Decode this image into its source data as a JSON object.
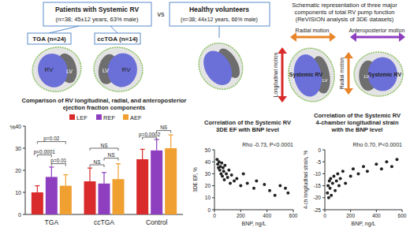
{
  "chart_data": [
    {
      "type": "bar",
      "title": [
        "Comparison of RV longitudinal, radial, and anteroposterior",
        "ejection fraction components"
      ],
      "categories": [
        "TGA",
        "ccTGA",
        "Control"
      ],
      "y_label": "%",
      "ylim": [
        0,
        40
      ],
      "yticks": [
        0,
        10,
        20,
        30,
        40
      ],
      "legend": "top",
      "series": [
        {
          "name": "LEF",
          "color": "#d92b2b",
          "values": [
            10,
            15,
            25
          ],
          "errors": [
            3,
            6,
            4.5
          ]
        },
        {
          "name": "REF",
          "color": "#8e3fbf",
          "values": [
            17,
            14,
            29
          ],
          "errors": [
            4.5,
            5,
            5
          ]
        },
        {
          "name": "AEF",
          "color": "#f0a030",
          "values": [
            13,
            16,
            30
          ],
          "errors": [
            5,
            7,
            6
          ]
        }
      ],
      "annotations": [
        {
          "label": "p=0.02",
          "category": 0,
          "between": [
            0,
            2
          ],
          "y": 33
        },
        {
          "label": "p<0.0001",
          "category": 0,
          "between": [
            0,
            1
          ],
          "y": 27
        },
        {
          "label": "p=0.01",
          "category": 0,
          "between": [
            1,
            2
          ],
          "y": 23
        },
        {
          "label": "NS",
          "category": 1,
          "between": [
            0,
            2
          ],
          "y": 30
        },
        {
          "label": "NS",
          "category": 1,
          "between": [
            0,
            1
          ],
          "y": 22.5
        },
        {
          "label": "NS",
          "category": 1,
          "between": [
            1,
            2
          ],
          "y": 25.5
        },
        {
          "label": "p=0.0002",
          "category": 2,
          "between": [
            0,
            1
          ],
          "y": 35
        },
        {
          "label": "NS",
          "category": 2,
          "between": [
            1,
            2
          ],
          "y": 38
        }
      ]
    },
    {
      "type": "scatter",
      "title": [
        "Correlation of the Systemic RV",
        "3DE EF with BNP level"
      ],
      "annotation": "Rho -0.73, P<0.0001",
      "x_label": "BNP, ng/L",
      "y_label": "3DE EF, %",
      "color": "#222222",
      "marker": "circle",
      "xlim": [
        0,
        600
      ],
      "xticks": [
        0,
        200,
        400,
        600
      ],
      "ylim": [
        0,
        50
      ],
      "yticks": [
        0,
        10,
        20,
        30,
        40,
        50
      ],
      "x": [
        20,
        25,
        30,
        35,
        40,
        45,
        50,
        55,
        60,
        65,
        70,
        75,
        80,
        90,
        100,
        110,
        120,
        130,
        150,
        170,
        200,
        220,
        250,
        300,
        320,
        380,
        420,
        460,
        500,
        540,
        560
      ],
      "values": [
        42,
        38,
        35,
        40,
        33,
        36,
        30,
        39,
        28,
        35,
        32,
        25,
        37,
        30,
        27,
        33,
        22,
        29,
        24,
        26,
        20,
        30,
        22,
        18,
        24,
        21,
        16,
        12,
        20,
        18,
        14
      ]
    },
    {
      "type": "scatter",
      "title": [
        "Correlation of the Systemic RV",
        "4-chamber longitudinal strain",
        "with the BNP level"
      ],
      "annotation": "Rho 0.70, P<0.0001",
      "x_label": "BNP, ng/L",
      "y_label": "4-ch longitudinal strain, %",
      "color": "#222222",
      "marker": "circle",
      "xlim": [
        0,
        600
      ],
      "xticks": [
        0,
        200,
        400,
        600
      ],
      "ylim": [
        -25,
        0
      ],
      "yticks": [
        -25,
        -20,
        -15,
        -10,
        -5,
        0
      ],
      "x": [
        20,
        25,
        30,
        35,
        40,
        45,
        50,
        60,
        70,
        80,
        90,
        100,
        110,
        120,
        140,
        160,
        200,
        220,
        260,
        300,
        330,
        400,
        440,
        480,
        520,
        560
      ],
      "values": [
        -18,
        -15,
        -20,
        -13,
        -16,
        -12,
        -19,
        -14,
        -11,
        -17,
        -13,
        -10,
        -15,
        -12,
        -9,
        -14,
        -11,
        -8,
        -10,
        -7,
        -9,
        -6,
        -8,
        -5,
        -7,
        -4
      ]
    }
  ],
  "diagram": {
    "patients": "Patients with Systemic RV",
    "patients_detail": "(n=38; 45±12 years, 63% male)",
    "vs": "vs",
    "healthy": "Healthy volunteers",
    "healthy_detail": "(n=38; 44±12 years, 66% male)",
    "groups": [
      "TGA (n=24)",
      "ccTGA (n=14)"
    ],
    "rv": "RV",
    "lv": "LV",
    "schematic": {
      "title": [
        "Schematic representation of three major",
        "components of total RV pump function",
        "(ReVISION analysis of 3DE datasets)"
      ],
      "radial": "Radial motion",
      "anteroposterior": "Anteroposterior motion",
      "longitudinal": "Longitudinal motion",
      "systemic_rv": "Systemic RV"
    }
  }
}
